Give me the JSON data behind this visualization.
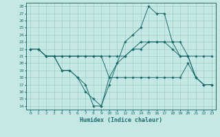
{
  "xlabel": "Humidex (Indice chaleur)",
  "background_color": "#c5e8e5",
  "grid_color": "#9dcfcc",
  "line_color": "#1a6b6b",
  "xlim": [
    -0.5,
    23.5
  ],
  "ylim": [
    13.5,
    28.5
  ],
  "xticks": [
    0,
    1,
    2,
    3,
    4,
    5,
    6,
    7,
    8,
    9,
    10,
    11,
    12,
    13,
    14,
    15,
    16,
    17,
    18,
    19,
    20,
    21,
    22,
    23
  ],
  "yticks": [
    14,
    15,
    16,
    17,
    18,
    19,
    20,
    21,
    22,
    23,
    24,
    25,
    26,
    27,
    28
  ],
  "line1": [
    22,
    22,
    21,
    21,
    19,
    19,
    18,
    17,
    14,
    14,
    17,
    20,
    23,
    24,
    25,
    28,
    27,
    27,
    23,
    21,
    21,
    18,
    17,
    17
  ],
  "line2": [
    22,
    22,
    21,
    21,
    19,
    19,
    18,
    16,
    15,
    14,
    18,
    20,
    21,
    22,
    23,
    23,
    23,
    23,
    22,
    21,
    21,
    18,
    17,
    17
  ],
  "line3": [
    22,
    22,
    21,
    21,
    21,
    21,
    21,
    21,
    21,
    21,
    21,
    21,
    21,
    22,
    22,
    23,
    23,
    23,
    23,
    23,
    21,
    21,
    21,
    21
  ],
  "line4": [
    22,
    22,
    21,
    21,
    21,
    21,
    21,
    21,
    21,
    21,
    18,
    18,
    18,
    18,
    18,
    18,
    18,
    18,
    18,
    18,
    20,
    18,
    17,
    17
  ]
}
